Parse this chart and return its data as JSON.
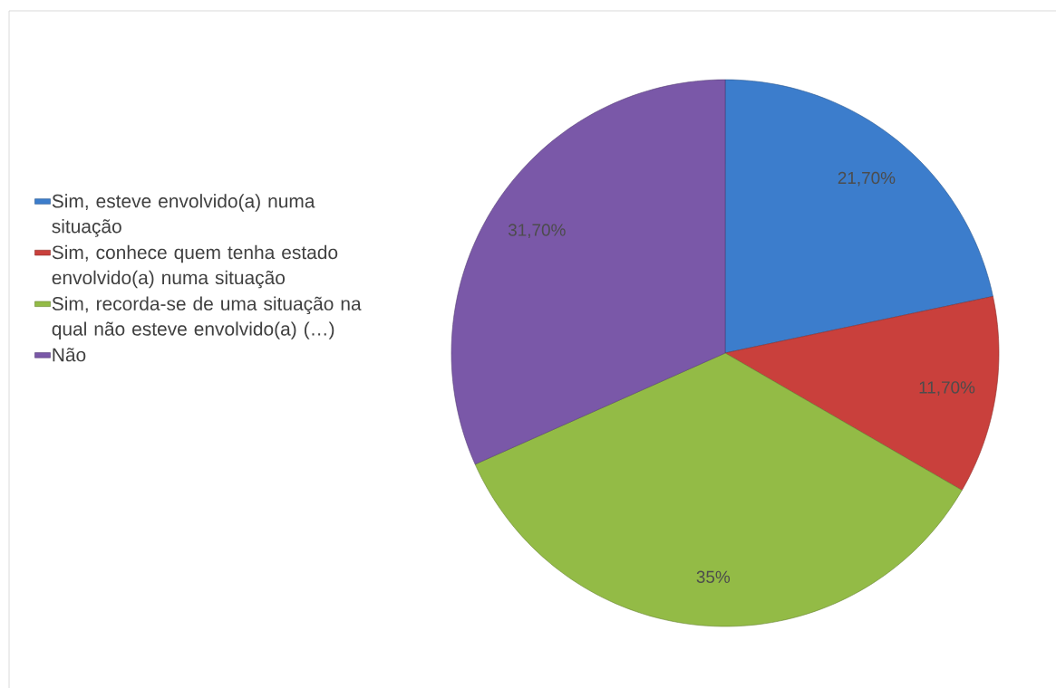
{
  "chart_data": {
    "type": "pie",
    "categories": [
      "Sim, esteve envolvido(a) numa situação",
      "Sim, conhece quem tenha estado envolvido(a) numa situação",
      "Sim, recorda-se de uma situação na qual não esteve envolvido(a) (…)",
      "Não"
    ],
    "values": [
      21.7,
      11.7,
      35,
      31.7
    ],
    "colors": [
      "#3c7dcc",
      "#c9403c",
      "#93bb46",
      "#7a58a8"
    ],
    "value_labels": [
      "21,70%",
      "11,70%",
      "35%",
      "31,70%"
    ],
    "legend": "left"
  }
}
